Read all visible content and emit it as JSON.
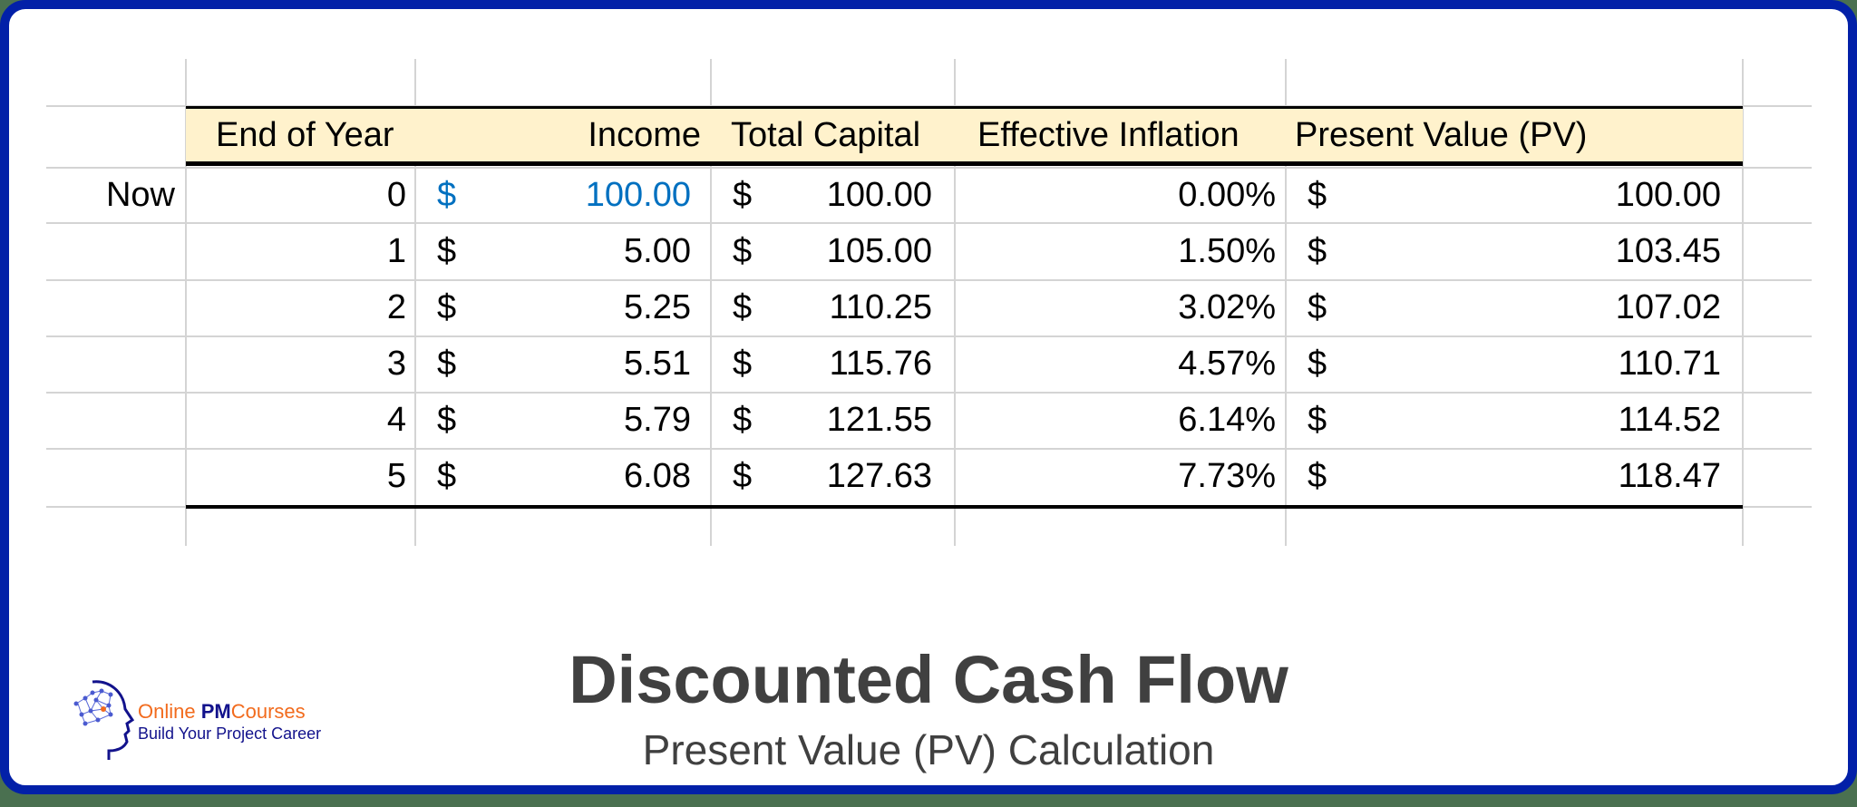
{
  "table": {
    "headers": {
      "year": "End of Year",
      "income": "Income",
      "capital": "Total Capital",
      "inflation": "Effective Inflation",
      "pv": "Present Value (PV)"
    },
    "currency_symbol": "$",
    "now_label": "Now",
    "rows": [
      {
        "label": "Now",
        "year": "0",
        "income": "100.00",
        "capital": "100.00",
        "inflation": "0.00%",
        "pv": "100.00"
      },
      {
        "label": "",
        "year": "1",
        "income": "5.00",
        "capital": "105.00",
        "inflation": "1.50%",
        "pv": "103.45"
      },
      {
        "label": "",
        "year": "2",
        "income": "5.25",
        "capital": "110.25",
        "inflation": "3.02%",
        "pv": "107.02"
      },
      {
        "label": "",
        "year": "3",
        "income": "5.51",
        "capital": "115.76",
        "inflation": "4.57%",
        "pv": "110.71"
      },
      {
        "label": "",
        "year": "4",
        "income": "5.79",
        "capital": "121.55",
        "inflation": "6.14%",
        "pv": "114.52"
      },
      {
        "label": "",
        "year": "5",
        "income": "6.08",
        "capital": "127.63",
        "inflation": "7.73%",
        "pv": "118.47"
      }
    ]
  },
  "title": "Discounted Cash Flow",
  "subtitle": "Present Value (PV) Calculation",
  "logo": {
    "word1": "Online",
    "word2": "PM",
    "word3": "Courses",
    "tagline": "Build Your Project Career",
    "icon": "head-network-icon"
  },
  "colors": {
    "frame_border": "#0220a8",
    "header_fill": "#fff2cc",
    "input_blue": "#0070c0",
    "title_gray": "#404040",
    "logo_orange": "#f26b1d",
    "logo_navy": "#12128c"
  }
}
